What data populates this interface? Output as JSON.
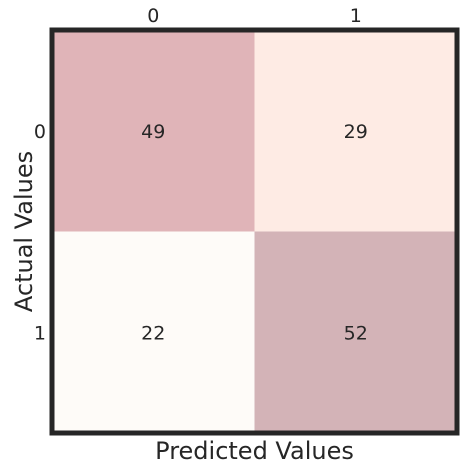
{
  "chart_data": {
    "type": "heatmap",
    "xlabel": "Predicted Values",
    "ylabel": "Actual Values",
    "x_tick_labels": [
      "0",
      "1"
    ],
    "y_tick_labels": [
      "0",
      "1"
    ],
    "x_ticks_position": "top",
    "values": [
      [
        49,
        29
      ],
      [
        22,
        52
      ]
    ],
    "cell_colors": [
      [
        "#e0b4b8",
        "#feebe4"
      ],
      [
        "#fefbf8",
        "#d3b3b7"
      ]
    ],
    "frame_color": "#262626"
  }
}
